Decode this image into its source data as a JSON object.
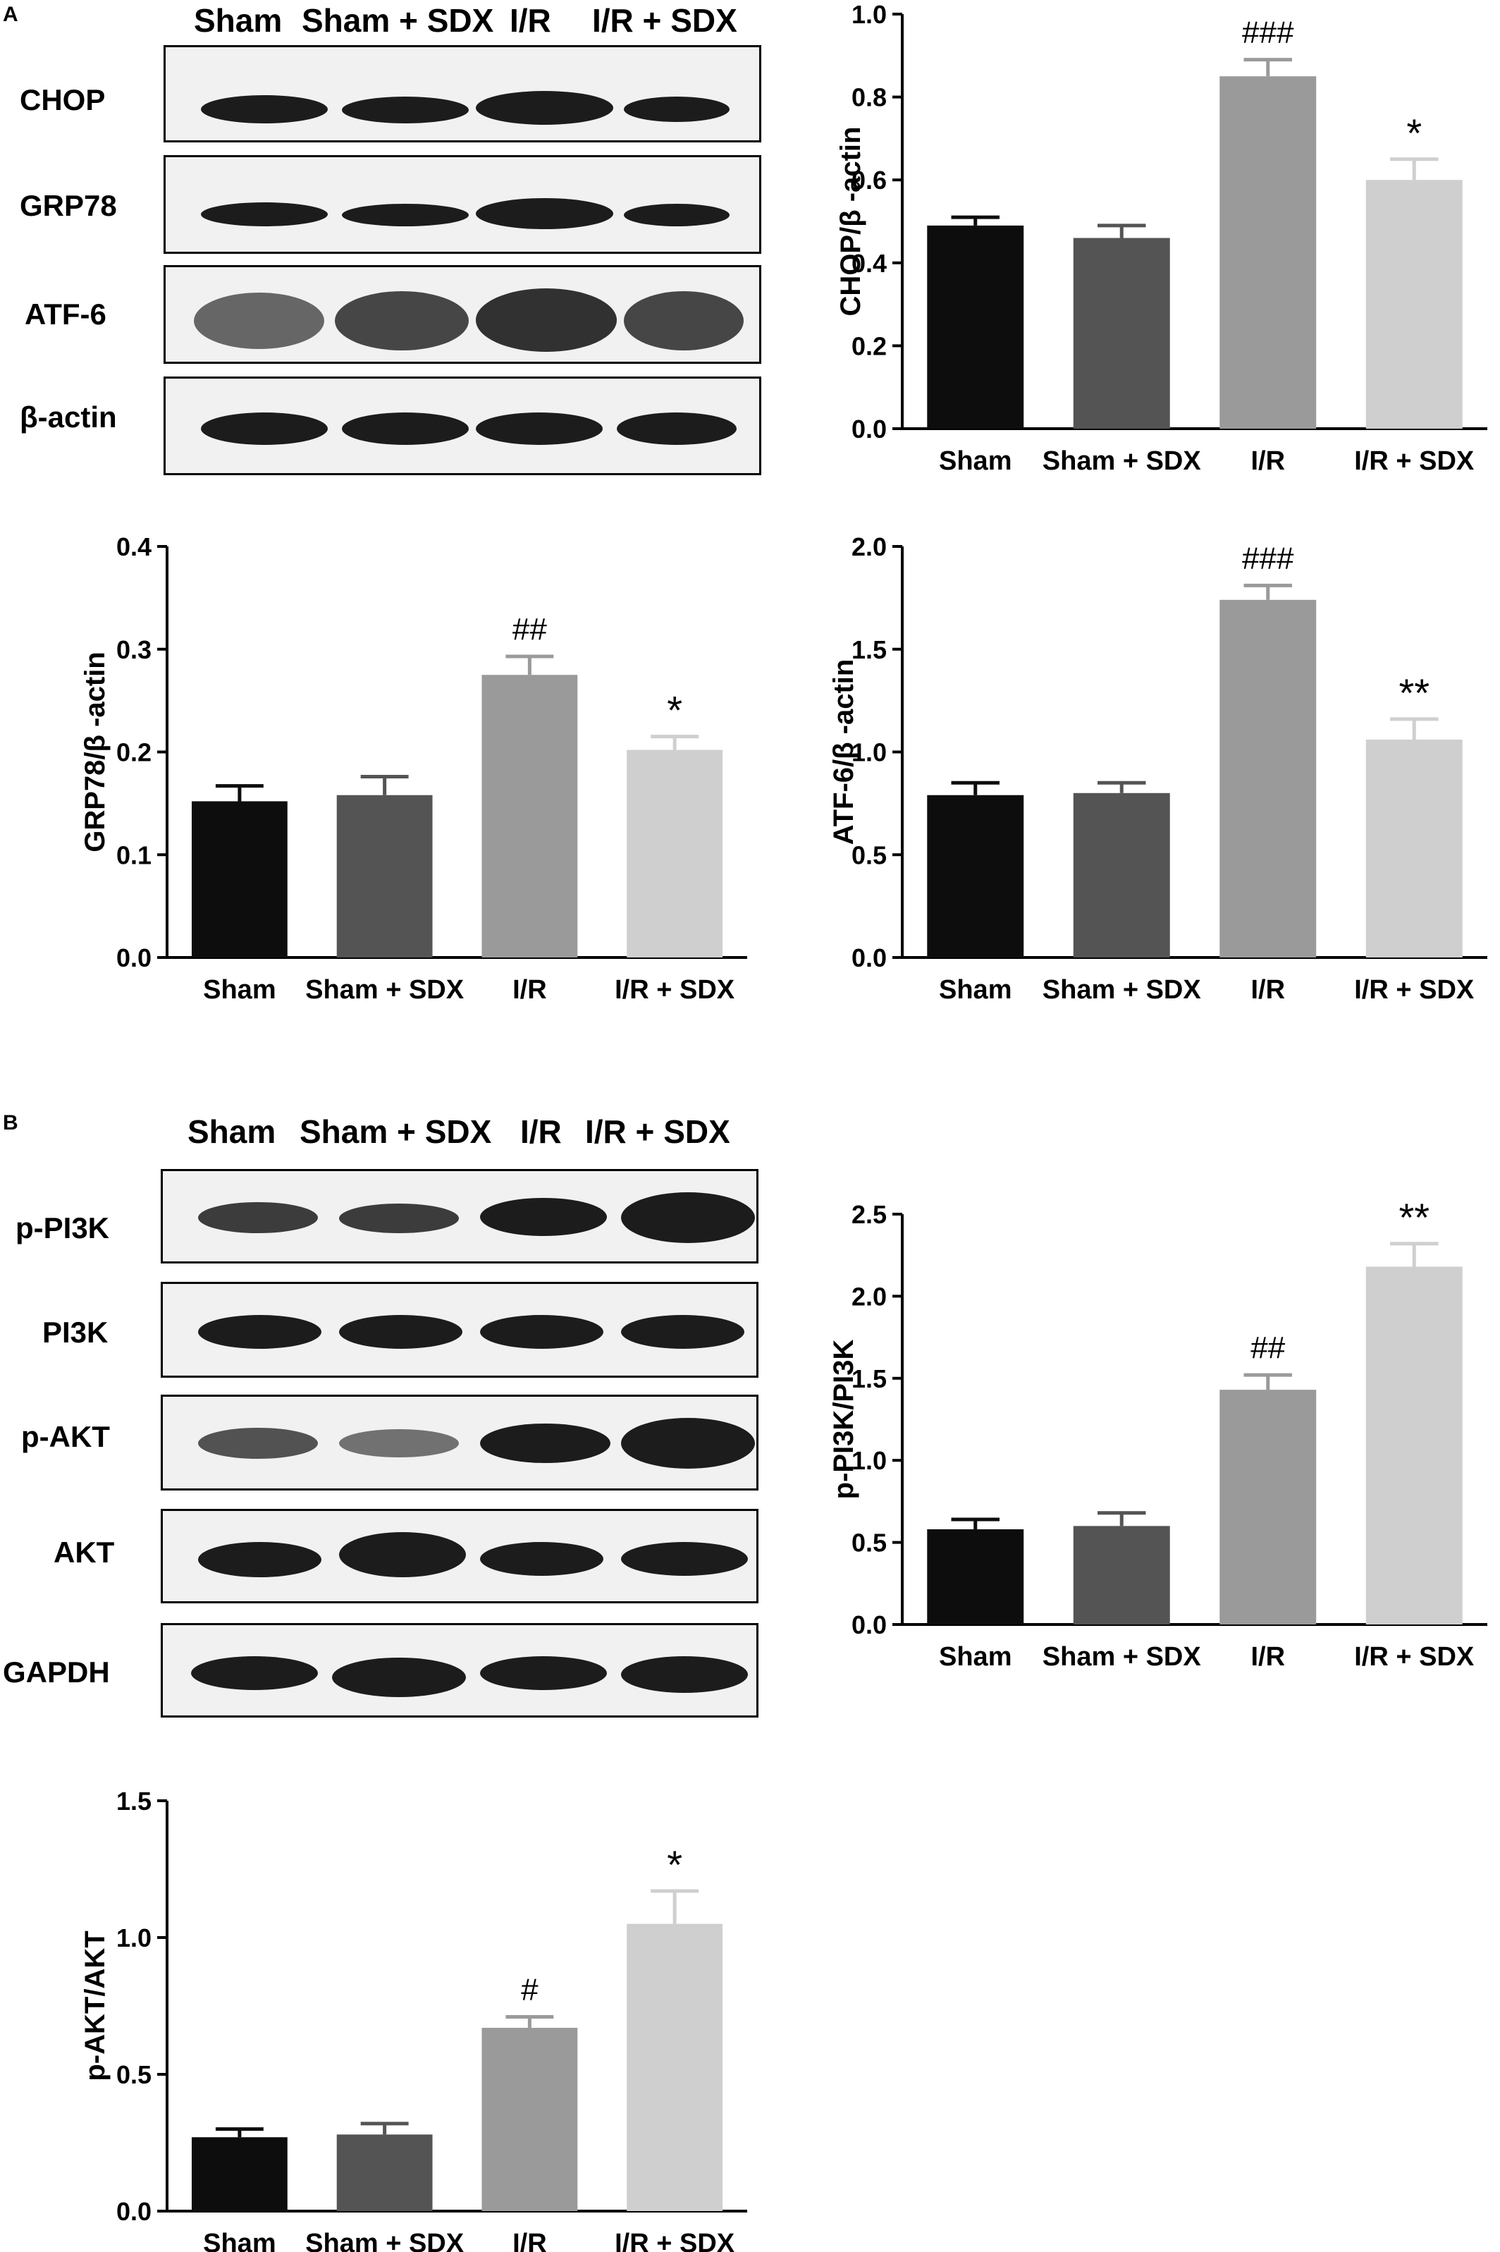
{
  "panels": {
    "a": "A",
    "b": "B"
  },
  "lanes_a": [
    "Sham",
    "Sham + SDX",
    "I/R",
    "I/R + SDX"
  ],
  "lanes_b": [
    "Sham",
    "Sham + SDX",
    "I/R",
    "I/R + SDX"
  ],
  "blots_a": [
    "CHOP",
    "GRP78",
    "ATF-6",
    "β-actin"
  ],
  "blots_b": [
    "p-PI3K",
    "PI3K",
    "p-AKT",
    "AKT",
    "GAPDH"
  ],
  "colors": {
    "sham": "#0d0d0d",
    "sham_sdx": "#545454",
    "ir": "#9a9a9a",
    "ir_sdx": "#cfcfcf"
  },
  "chart_data": [
    {
      "type": "bar",
      "categories": [
        "Sham",
        "Sham + SDX",
        "I/R",
        "I/R + SDX"
      ],
      "values": [
        0.49,
        0.46,
        0.85,
        0.6
      ],
      "errors": [
        0.02,
        0.03,
        0.04,
        0.05
      ],
      "annotations": [
        "",
        "",
        "###",
        "*"
      ],
      "ylabel": "CHOP/β -actin",
      "ylim": [
        0,
        1.0
      ],
      "yticks": [
        "0.0",
        "0.2",
        "0.4",
        "0.6",
        "0.8",
        "1.0"
      ]
    },
    {
      "type": "bar",
      "categories": [
        "Sham",
        "Sham + SDX",
        "I/R",
        "I/R + SDX"
      ],
      "values": [
        0.152,
        0.158,
        0.275,
        0.202
      ],
      "errors": [
        0.015,
        0.018,
        0.018,
        0.013
      ],
      "annotations": [
        "",
        "",
        "##",
        "*"
      ],
      "ylabel": "GRP78/β -actin",
      "ylim": [
        0,
        0.4
      ],
      "yticks": [
        "0.0",
        "0.1",
        "0.2",
        "0.3",
        "0.4"
      ]
    },
    {
      "type": "bar",
      "categories": [
        "Sham",
        "Sham + SDX",
        "I/R",
        "I/R + SDX"
      ],
      "values": [
        0.79,
        0.8,
        1.74,
        1.06
      ],
      "errors": [
        0.06,
        0.05,
        0.07,
        0.1
      ],
      "annotations": [
        "",
        "",
        "###",
        "**"
      ],
      "ylabel": "ATF-6/β -actin",
      "ylim": [
        0,
        2.0
      ],
      "yticks": [
        "0.0",
        "0.5",
        "1.0",
        "1.5",
        "2.0"
      ]
    },
    {
      "type": "bar",
      "categories": [
        "Sham",
        "Sham + SDX",
        "I/R",
        "I/R + SDX"
      ],
      "values": [
        0.58,
        0.6,
        1.43,
        2.18
      ],
      "errors": [
        0.06,
        0.08,
        0.09,
        0.14
      ],
      "annotations": [
        "",
        "",
        "##",
        "**"
      ],
      "ylabel": "p-PI3K/PI3K",
      "ylim": [
        0,
        2.5
      ],
      "yticks": [
        "0.0",
        "0.5",
        "1.0",
        "1.5",
        "2.0",
        "2.5"
      ]
    },
    {
      "type": "bar",
      "categories": [
        "Sham",
        "Sham + SDX",
        "I/R",
        "I/R + SDX"
      ],
      "values": [
        0.27,
        0.28,
        0.67,
        1.05
      ],
      "errors": [
        0.03,
        0.04,
        0.04,
        0.12
      ],
      "annotations": [
        "",
        "",
        "#",
        "*"
      ],
      "ylabel": "p-AKT/AKT",
      "ylim": [
        0,
        1.5
      ],
      "yticks": [
        "0.0",
        "0.5",
        "1.0",
        "1.5"
      ]
    }
  ]
}
